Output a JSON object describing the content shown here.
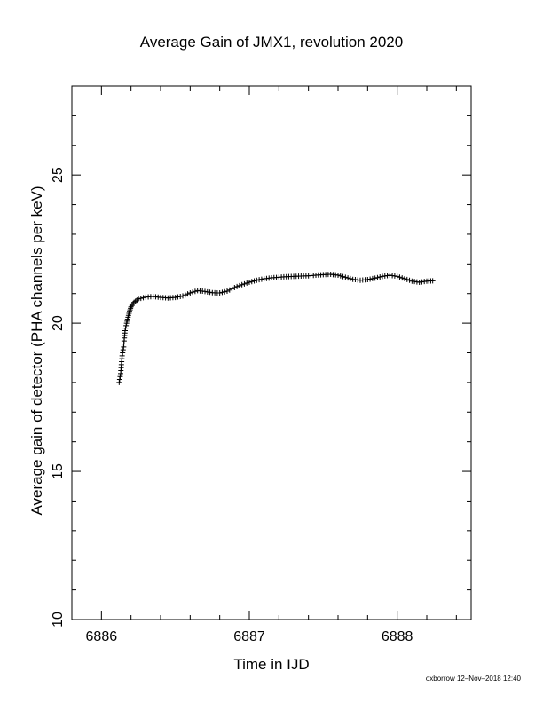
{
  "footer": {
    "credit": "oxborrow 12–Nov–2018 12:40"
  },
  "chart_data": {
    "type": "scatter",
    "title": "Average Gain of JMX1, revolution 2020",
    "xlabel": "Time in IJD",
    "ylabel": "Average gain of detector (PHA channels per keV)",
    "xlim": [
      6885.8,
      6888.5
    ],
    "ylim": [
      10,
      28
    ],
    "xticks": [
      6886,
      6887,
      6888
    ],
    "yticks": [
      10,
      15,
      20,
      25
    ],
    "x_tick_labels": [
      "6886",
      "6887",
      "6888"
    ],
    "y_tick_labels": [
      "10",
      "15",
      "20",
      "25"
    ],
    "marker": "plus",
    "grid": false,
    "series": [
      {
        "points": [
          [
            6886.12,
            18.0
          ],
          [
            6886.13,
            18.3
          ],
          [
            6886.135,
            18.6
          ],
          [
            6886.14,
            18.9
          ],
          [
            6886.15,
            19.2
          ],
          [
            6886.155,
            19.5
          ],
          [
            6886.16,
            19.75
          ],
          [
            6886.17,
            20.0
          ],
          [
            6886.18,
            20.2
          ],
          [
            6886.19,
            20.4
          ],
          [
            6886.2,
            20.55
          ],
          [
            6886.22,
            20.7
          ],
          [
            6886.25,
            20.82
          ],
          [
            6886.3,
            20.88
          ],
          [
            6886.35,
            20.9
          ],
          [
            6886.4,
            20.87
          ],
          [
            6886.45,
            20.85
          ],
          [
            6886.5,
            20.87
          ],
          [
            6886.55,
            20.92
          ],
          [
            6886.6,
            21.02
          ],
          [
            6886.65,
            21.1
          ],
          [
            6886.7,
            21.07
          ],
          [
            6886.75,
            21.03
          ],
          [
            6886.8,
            21.02
          ],
          [
            6886.85,
            21.08
          ],
          [
            6886.9,
            21.2
          ],
          [
            6886.95,
            21.3
          ],
          [
            6887.0,
            21.38
          ],
          [
            6887.05,
            21.45
          ],
          [
            6887.1,
            21.5
          ],
          [
            6887.15,
            21.53
          ],
          [
            6887.2,
            21.55
          ],
          [
            6887.25,
            21.57
          ],
          [
            6887.3,
            21.58
          ],
          [
            6887.35,
            21.59
          ],
          [
            6887.4,
            21.6
          ],
          [
            6887.45,
            21.62
          ],
          [
            6887.5,
            21.64
          ],
          [
            6887.55,
            21.65
          ],
          [
            6887.6,
            21.62
          ],
          [
            6887.65,
            21.55
          ],
          [
            6887.7,
            21.48
          ],
          [
            6887.75,
            21.45
          ],
          [
            6887.8,
            21.47
          ],
          [
            6887.85,
            21.52
          ],
          [
            6887.9,
            21.58
          ],
          [
            6887.95,
            21.62
          ],
          [
            6888.0,
            21.58
          ],
          [
            6888.05,
            21.5
          ],
          [
            6888.1,
            21.42
          ],
          [
            6888.15,
            21.38
          ],
          [
            6888.2,
            21.42
          ],
          [
            6888.24,
            21.43
          ]
        ]
      }
    ]
  }
}
